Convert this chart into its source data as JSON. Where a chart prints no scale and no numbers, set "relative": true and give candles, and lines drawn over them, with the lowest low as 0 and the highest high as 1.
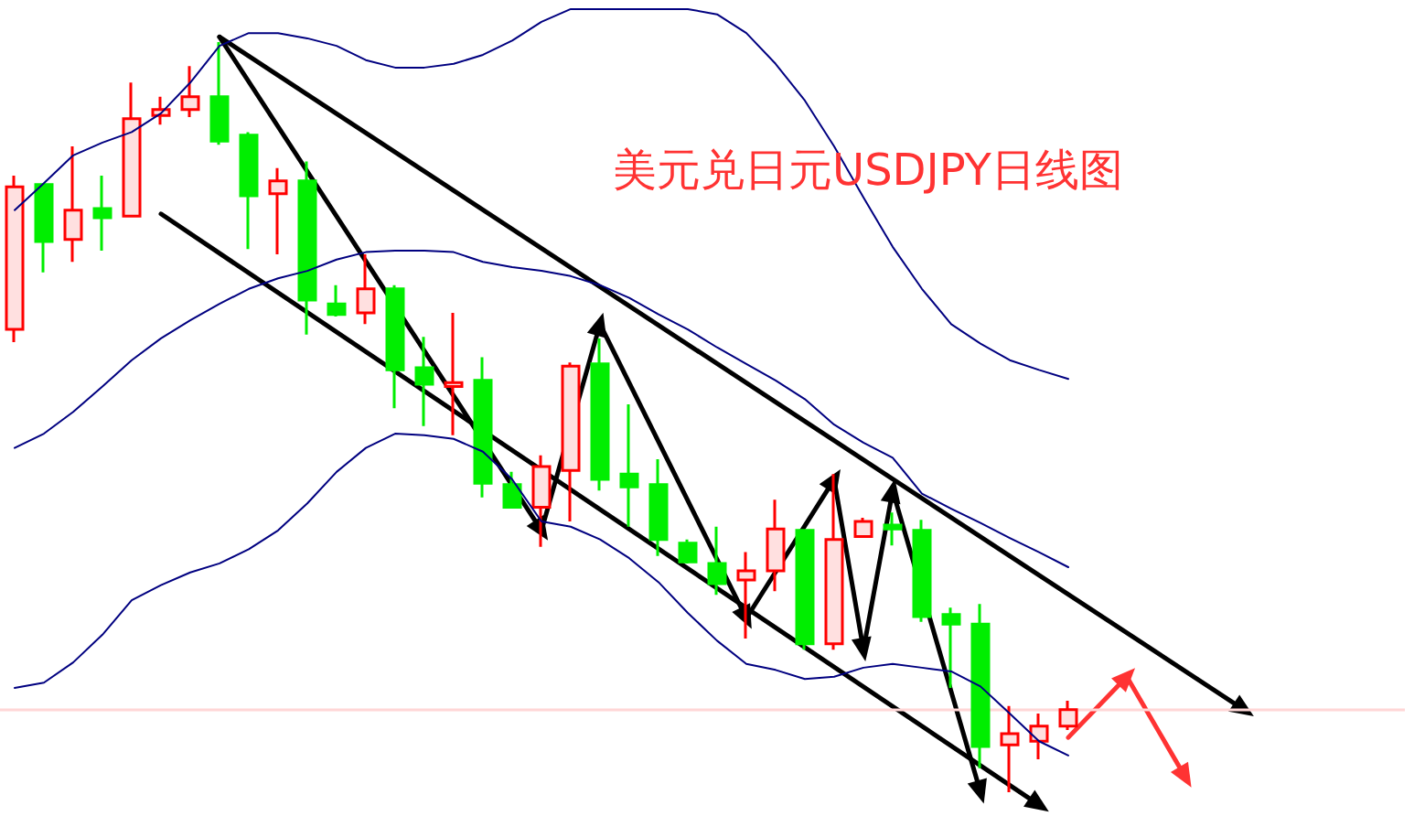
{
  "chart_data": {
    "type": "candlestick",
    "title": "美元兑日元USDJPY日线图",
    "relative": true,
    "categories": [
      null,
      null,
      null,
      null,
      null,
      null,
      null,
      null,
      null,
      null,
      null,
      null,
      null,
      null,
      null,
      null,
      null,
      null,
      null,
      null,
      null,
      null,
      null,
      null,
      null,
      null,
      null,
      null,
      null,
      null,
      null,
      null,
      null,
      null,
      null,
      null,
      null,
      null,
      null,
      null,
      null,
      null,
      null,
      null,
      null,
      null,
      null,
      null
    ],
    "ohlc": [
      [
        0.617,
        0.822,
        0.6,
        0.807
      ],
      [
        0.81,
        0.81,
        0.693,
        0.734
      ],
      [
        0.737,
        0.861,
        0.707,
        0.776
      ],
      [
        0.778,
        0.822,
        0.722,
        0.766
      ],
      [
        0.768,
        0.946,
        0.768,
        0.898
      ],
      [
        0.902,
        0.927,
        0.89,
        0.91
      ],
      [
        0.91,
        0.968,
        0.9,
        0.927
      ],
      [
        0.927,
        1,
        0.863,
        0.868
      ],
      [
        0.876,
        0.88,
        0.724,
        0.795
      ],
      [
        0.798,
        0.832,
        0.717,
        0.815
      ],
      [
        0.815,
        0.841,
        0.61,
        0.656
      ],
      [
        0.651,
        0.676,
        0.634,
        0.637
      ],
      [
        0.639,
        0.717,
        0.624,
        0.671
      ],
      [
        0.671,
        0.676,
        0.512,
        0.563
      ],
      [
        0.566,
        0.607,
        0.488,
        0.544
      ],
      [
        0.541,
        0.639,
        0.476,
        0.546
      ],
      [
        0.549,
        0.58,
        0.393,
        0.412
      ],
      [
        0.41,
        0.427,
        0.378,
        0.38
      ],
      [
        0.38,
        0.449,
        0.327,
        0.434
      ],
      [
        0.429,
        0.573,
        0.361,
        0.568
      ],
      [
        0.571,
        0.605,
        0.402,
        0.417
      ],
      [
        0.424,
        0.517,
        0.354,
        0.407
      ],
      [
        0.41,
        0.444,
        0.315,
        0.337
      ],
      [
        0.332,
        0.337,
        0.305,
        0.307
      ],
      [
        0.305,
        0.354,
        0.263,
        0.278
      ],
      [
        0.283,
        0.32,
        0.205,
        0.295
      ],
      [
        0.295,
        0.39,
        0.268,
        0.351
      ],
      [
        0.349,
        0.349,
        0.19,
        0.198
      ],
      [
        0.198,
        0.424,
        0.19,
        0.337
      ],
      [
        0.341,
        0.366,
        0.341,
        0.361
      ],
      [
        0.356,
        0.373,
        0.329,
        0.351
      ],
      [
        0.349,
        0.363,
        0.227,
        0.234
      ],
      [
        0.237,
        0.246,
        0.139,
        0.224
      ],
      [
        0.224,
        0.251,
        0.032,
        0.061
      ],
      [
        0.063,
        0.115,
        0,
        0.078
      ],
      [
        0.068,
        0.105,
        0.044,
        0.088
      ],
      [
        0.088,
        0.122,
        0.083,
        0.11
      ],
      null,
      null,
      null,
      null,
      null,
      null,
      null,
      null,
      null,
      null,
      null
    ],
    "colors": [
      "#ff0000",
      "#00ee00",
      "#ff0000",
      "#00ee00",
      "#ff0000",
      "#ff0000",
      "#ff0000",
      "#00ee00",
      "#00ee00",
      "#ff0000",
      "#00ee00",
      "#00ee00",
      "#ff0000",
      "#00ee00",
      "#00ee00",
      "#ff0000",
      "#00ee00",
      "#00ee00",
      "#ff0000",
      "#ff0000",
      "#00ee00",
      "#00ee00",
      "#00ee00",
      "#00ee00",
      "#00ee00",
      "#ff0000",
      "#ff0000",
      "#00ee00",
      "#ff0000",
      "#ff0000",
      "#00ee00",
      "#00ee00",
      "#00ee00",
      "#00ee00",
      "#ff0000",
      "#ff0000",
      "#ff0000",
      null,
      null,
      null,
      null,
      null,
      null,
      null,
      null,
      null,
      null,
      null
    ],
    "series": [
      {
        "type": "line",
        "color": "#000080",
        "values": [
          0.776,
          0.812,
          0.849,
          0.866,
          0.88,
          0.905,
          0.946,
          0.995,
          1.012,
          1.012,
          1.005,
          0.995,
          0.976,
          0.966,
          0.966,
          0.971,
          0.983,
          1.002,
          1.027,
          1.044,
          1.044,
          1.044,
          1.044,
          1.044,
          1.037,
          1.012,
          0.971,
          0.922,
          0.861,
          0.793,
          0.727,
          0.671,
          0.624,
          0.598,
          0.576,
          0.563,
          0.551,
          null,
          null,
          null,
          null,
          null,
          null,
          null,
          null,
          null,
          null,
          null
        ]
      },
      {
        "type": "line",
        "color": "#000080",
        "values": [
          0.459,
          0.478,
          0.507,
          0.541,
          0.576,
          0.605,
          0.629,
          0.651,
          0.671,
          0.685,
          0.695,
          0.71,
          0.72,
          0.722,
          0.722,
          0.72,
          0.707,
          0.7,
          0.695,
          0.688,
          0.676,
          0.659,
          0.637,
          0.617,
          0.593,
          0.571,
          0.549,
          0.524,
          0.49,
          0.466,
          0.446,
          0.398,
          0.378,
          0.359,
          0.339,
          0.32,
          0.3,
          null,
          null,
          null,
          null,
          null,
          null,
          null,
          null,
          null,
          null,
          null
        ]
      },
      {
        "type": "line",
        "color": "#000080",
        "values": [
          0.139,
          0.146,
          0.173,
          0.21,
          0.256,
          0.276,
          0.293,
          0.305,
          0.324,
          0.349,
          0.385,
          0.427,
          0.459,
          0.478,
          0.476,
          0.471,
          0.454,
          0.417,
          0.361,
          0.354,
          0.337,
          0.312,
          0.28,
          0.239,
          0.202,
          0.171,
          0.163,
          0.151,
          0.154,
          0.166,
          0.171,
          0.166,
          0.161,
          0.141,
          0.105,
          0.068,
          0.049,
          null,
          null,
          null,
          null,
          null,
          null,
          null,
          null,
          null,
          null,
          null
        ]
      },
      {
        "type": "line",
        "color": "#000000",
        "marker": "triangle",
        "values": [
          null,
          null,
          null,
          null,
          null,
          null,
          null,
          1.007,
          null,
          null,
          null,
          null,
          null,
          null,
          null,
          null,
          null,
          null,
          null,
          null,
          null,
          null,
          null,
          null,
          null,
          null,
          null,
          null,
          null,
          null,
          null,
          null,
          null,
          null,
          null,
          null,
          null,
          null,
          null,
          null,
          null,
          null,
          0.11,
          null,
          null,
          null,
          null,
          null
        ]
      },
      {
        "type": "line",
        "color": "#000000",
        "marker": "triangle",
        "values": [
          null,
          null,
          null,
          null,
          null,
          null,
          null,
          1.007,
          null,
          null,
          null,
          null,
          null,
          null,
          null,
          null,
          null,
          null,
          0.349,
          null,
          null,
          null,
          null,
          null,
          null,
          null,
          null,
          null,
          null,
          null,
          null,
          null,
          null,
          null,
          null,
          null,
          null,
          null,
          null,
          null,
          null,
          null,
          null,
          null,
          null,
          null,
          null,
          null
        ]
      },
      {
        "type": "line",
        "color": "#000000",
        "marker": "triangle",
        "values": [
          null,
          null,
          null,
          null,
          null,
          0.771,
          null,
          null,
          null,
          null,
          null,
          null,
          null,
          null,
          null,
          null,
          null,
          null,
          null,
          null,
          null,
          null,
          null,
          null,
          null,
          null,
          null,
          null,
          null,
          null,
          null,
          null,
          null,
          null,
          null,
          -0.017,
          null,
          null,
          null,
          null,
          null,
          null,
          null,
          null,
          null,
          null,
          null,
          null
        ]
      },
      {
        "type": "line",
        "color": "#000000",
        "marker": "triangle",
        "values": [
          null,
          null,
          null,
          null,
          null,
          null,
          null,
          null,
          null,
          null,
          null,
          null,
          null,
          null,
          null,
          null,
          null,
          null,
          0.349,
          null,
          0.624,
          null,
          null,
          null,
          null,
          null,
          null,
          null,
          null,
          null,
          null,
          null,
          null,
          null,
          null,
          null,
          null,
          null,
          null,
          null,
          null,
          null,
          null,
          null,
          null,
          null,
          null,
          null
        ]
      },
      {
        "type": "line",
        "color": "#000000",
        "marker": "triangle",
        "values": [
          null,
          null,
          null,
          null,
          null,
          null,
          null,
          null,
          null,
          null,
          null,
          null,
          null,
          null,
          null,
          null,
          null,
          null,
          null,
          null,
          0.624,
          null,
          null,
          null,
          null,
          0.232,
          null,
          null,
          null,
          null,
          null,
          null,
          null,
          null,
          null,
          null,
          null,
          null,
          null,
          null,
          null,
          null,
          null,
          null,
          null,
          null,
          null,
          null
        ]
      },
      {
        "type": "line",
        "color": "#000000",
        "marker": "triangle",
        "values": [
          null,
          null,
          null,
          null,
          null,
          null,
          null,
          null,
          null,
          null,
          null,
          null,
          null,
          null,
          null,
          null,
          null,
          null,
          null,
          null,
          null,
          null,
          null,
          null,
          null,
          0.232,
          null,
          null,
          0.417,
          null,
          null,
          null,
          null,
          null,
          null,
          null,
          null,
          null,
          null,
          null,
          null,
          null,
          null,
          null,
          null,
          null,
          null,
          null
        ]
      },
      {
        "type": "line",
        "color": "#000000",
        "marker": "triangle",
        "values": [
          null,
          null,
          null,
          null,
          null,
          null,
          null,
          null,
          null,
          null,
          null,
          null,
          null,
          null,
          null,
          null,
          null,
          null,
          null,
          null,
          null,
          null,
          null,
          null,
          null,
          null,
          null,
          null,
          0.417,
          0.19,
          null,
          null,
          null,
          null,
          null,
          null,
          null,
          null,
          null,
          null,
          null,
          null,
          null,
          null,
          null,
          null,
          null,
          null
        ]
      },
      {
        "type": "line",
        "color": "#000000",
        "marker": "triangle",
        "values": [
          null,
          null,
          null,
          null,
          null,
          null,
          null,
          null,
          null,
          null,
          null,
          null,
          null,
          null,
          null,
          null,
          null,
          null,
          null,
          null,
          null,
          null,
          null,
          null,
          null,
          null,
          null,
          null,
          null,
          0.19,
          0.402,
          null,
          null,
          null,
          null,
          null,
          null,
          null,
          null,
          null,
          null,
          null,
          null,
          null,
          null,
          null,
          null,
          null
        ]
      },
      {
        "type": "line",
        "color": "#000000",
        "marker": "triangle",
        "values": [
          null,
          null,
          null,
          null,
          null,
          null,
          null,
          null,
          null,
          null,
          null,
          null,
          null,
          null,
          null,
          null,
          null,
          null,
          null,
          null,
          null,
          null,
          null,
          null,
          null,
          null,
          null,
          null,
          null,
          null,
          0.402,
          null,
          null,
          0.0,
          null,
          null,
          null,
          null,
          null,
          null,
          null,
          null,
          null,
          null,
          null,
          null,
          null,
          null
        ]
      },
      {
        "type": "line",
        "color": "#ff3333",
        "marker": "triangle",
        "values": [
          null,
          null,
          null,
          null,
          null,
          null,
          null,
          null,
          null,
          null,
          null,
          null,
          null,
          null,
          null,
          null,
          null,
          null,
          null,
          null,
          null,
          null,
          null,
          null,
          null,
          null,
          null,
          null,
          null,
          null,
          null,
          null,
          null,
          null,
          null,
          null,
          0.073,
          null,
          0.154,
          null,
          null,
          null,
          null,
          null,
          null,
          null,
          null,
          null
        ]
      },
      {
        "type": "line",
        "color": "#ff3333",
        "marker": "triangle",
        "values": [
          null,
          null,
          null,
          null,
          null,
          null,
          null,
          null,
          null,
          null,
          null,
          null,
          null,
          null,
          null,
          null,
          null,
          null,
          null,
          null,
          null,
          null,
          null,
          null,
          null,
          null,
          null,
          null,
          null,
          null,
          null,
          null,
          null,
          null,
          null,
          null,
          null,
          null,
          0.154,
          null,
          0.02,
          null,
          null,
          null,
          null,
          null,
          null,
          null
        ]
      }
    ],
    "ref_lines": [
      {
        "axis": "y",
        "value": 0.11,
        "color": "#ffd6d6"
      }
    ]
  }
}
